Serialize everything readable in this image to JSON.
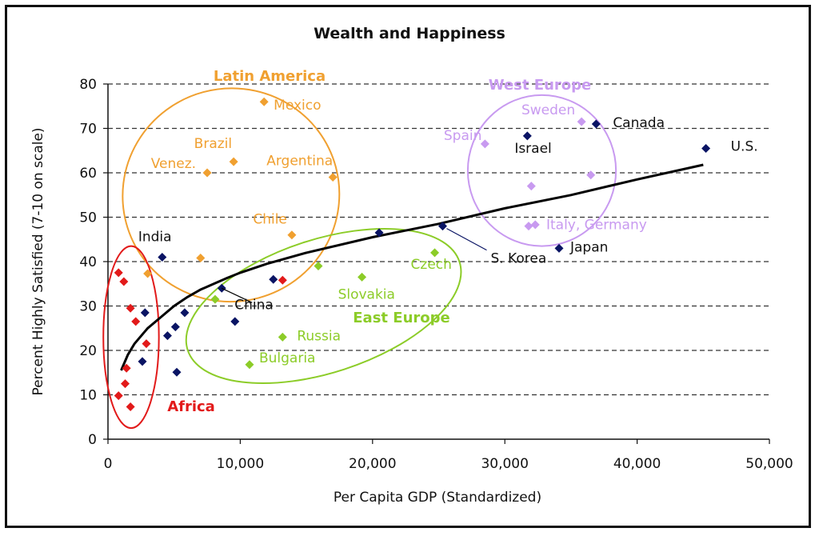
{
  "chart_data": {
    "type": "scatter",
    "title": "Wealth and Happiness",
    "xlabel": "Per Capita GDP (Standardized)",
    "ylabel": "Percent Highly Satisfied (7-10 on scale)",
    "xlim": [
      0,
      50000
    ],
    "ylim": [
      0,
      80
    ],
    "xticks": [
      "0",
      "10,000",
      "20,000",
      "30,000",
      "40,000",
      "50,000"
    ],
    "yticks": [
      "0",
      "10",
      "20",
      "30",
      "40",
      "50",
      "60",
      "70",
      "80"
    ],
    "grid": "horizontal dashed",
    "colors": {
      "latin": "#f0a030",
      "west": "#c89af0",
      "east": "#8ccc28",
      "africa": "#e21a1a",
      "other": "#0a1464",
      "curve": "#000000"
    },
    "groups": [
      {
        "name": "Latin America",
        "color": "#f0a030"
      },
      {
        "name": "West Europe",
        "color": "#c89af0"
      },
      {
        "name": "East Europe",
        "color": "#8ccc28"
      },
      {
        "name": "Africa",
        "color": "#e21a1a"
      }
    ],
    "points": [
      {
        "label": "Mexico",
        "x": 11800,
        "y": 76,
        "group": "latin"
      },
      {
        "label": "Brazil",
        "x": 9500,
        "y": 62.5,
        "group": "latin"
      },
      {
        "label": "Venez.",
        "x": 7500,
        "y": 60,
        "group": "latin"
      },
      {
        "label": "Argentina",
        "x": 17000,
        "y": 59,
        "group": "latin"
      },
      {
        "label": "Chile",
        "x": 13900,
        "y": 46,
        "group": "latin"
      },
      {
        "label": "",
        "x": 7000,
        "y": 40.8,
        "group": "latin"
      },
      {
        "label": "",
        "x": 3000,
        "y": 37.3,
        "group": "latin"
      },
      {
        "label": "Sweden",
        "x": 35800,
        "y": 71.5,
        "group": "west"
      },
      {
        "label": "Spain",
        "x": 28500,
        "y": 66.5,
        "group": "west"
      },
      {
        "label": "",
        "x": 36500,
        "y": 59.5,
        "group": "west"
      },
      {
        "label": "",
        "x": 32000,
        "y": 57,
        "group": "west"
      },
      {
        "label": "Italy, Germany",
        "x": 31800,
        "y": 48,
        "group": "west"
      },
      {
        "label": "",
        "x": 32300,
        "y": 48.3,
        "group": "west"
      },
      {
        "label": "Czech",
        "x": 24700,
        "y": 42,
        "group": "east"
      },
      {
        "label": "",
        "x": 15900,
        "y": 39,
        "group": "east"
      },
      {
        "label": "Slovakia",
        "x": 19200,
        "y": 36.5,
        "group": "east"
      },
      {
        "label": "",
        "x": 8100,
        "y": 31.5,
        "group": "east"
      },
      {
        "label": "Russia",
        "x": 13200,
        "y": 23,
        "group": "east"
      },
      {
        "label": "Bulgaria",
        "x": 10700,
        "y": 16.8,
        "group": "east"
      },
      {
        "label": "",
        "x": 800,
        "y": 37.5,
        "group": "africa"
      },
      {
        "label": "",
        "x": 1200,
        "y": 35.5,
        "group": "africa"
      },
      {
        "label": "",
        "x": 1700,
        "y": 29.5,
        "group": "africa"
      },
      {
        "label": "",
        "x": 2100,
        "y": 26.5,
        "group": "africa"
      },
      {
        "label": "",
        "x": 2900,
        "y": 21.5,
        "group": "africa"
      },
      {
        "label": "",
        "x": 1400,
        "y": 16,
        "group": "africa"
      },
      {
        "label": "",
        "x": 1300,
        "y": 12.5,
        "group": "africa"
      },
      {
        "label": "",
        "x": 800,
        "y": 9.8,
        "group": "africa"
      },
      {
        "label": "",
        "x": 1700,
        "y": 7.3,
        "group": "africa"
      },
      {
        "label": "",
        "x": 13200,
        "y": 35.8,
        "group": "africa"
      },
      {
        "label": "U.S.",
        "x": 45200,
        "y": 65.5,
        "group": "other"
      },
      {
        "label": "Canada",
        "x": 36900,
        "y": 71,
        "group": "other"
      },
      {
        "label": "Israel",
        "x": 31700,
        "y": 68.3,
        "group": "other"
      },
      {
        "label": "Japan",
        "x": 34100,
        "y": 43,
        "group": "other"
      },
      {
        "label": "S. Korea",
        "x": 25300,
        "y": 48,
        "group": "other"
      },
      {
        "label": "",
        "x": 20500,
        "y": 46.5,
        "group": "other"
      },
      {
        "label": "India",
        "x": 4100,
        "y": 41,
        "group": "other"
      },
      {
        "label": "",
        "x": 12500,
        "y": 36,
        "group": "other"
      },
      {
        "label": "China",
        "x": 8600,
        "y": 34,
        "group": "other"
      },
      {
        "label": "",
        "x": 9600,
        "y": 26.5,
        "group": "other"
      },
      {
        "label": "",
        "x": 5800,
        "y": 28.5,
        "group": "other"
      },
      {
        "label": "",
        "x": 2800,
        "y": 28.5,
        "group": "other"
      },
      {
        "label": "",
        "x": 5100,
        "y": 25.3,
        "group": "other"
      },
      {
        "label": "",
        "x": 4500,
        "y": 23.3,
        "group": "other"
      },
      {
        "label": "",
        "x": 2600,
        "y": 17.5,
        "group": "other"
      },
      {
        "label": "",
        "x": 5200,
        "y": 15.1,
        "group": "other"
      }
    ],
    "trend_line": {
      "x": [
        1000,
        1500,
        2000,
        3000,
        4000,
        5000,
        6000,
        7000,
        8000,
        9000,
        10000,
        12000,
        15000,
        20000,
        25000,
        30000,
        35000,
        40000,
        45000
      ],
      "y": [
        15.5,
        19,
        21.5,
        25,
        27.5,
        30,
        32,
        33.7,
        35,
        36.3,
        37.5,
        39.5,
        42,
        45.5,
        48.5,
        52,
        55,
        58.5,
        61.8
      ]
    }
  }
}
